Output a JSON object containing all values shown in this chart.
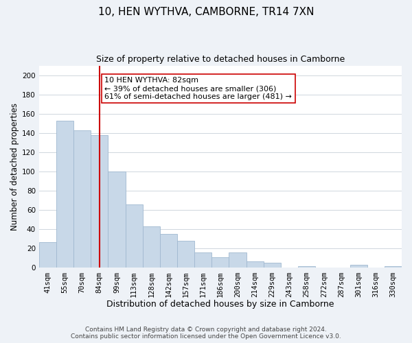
{
  "title": "10, HEN WYTHVA, CAMBORNE, TR14 7XN",
  "subtitle": "Size of property relative to detached houses in Camborne",
  "xlabel": "Distribution of detached houses by size in Camborne",
  "ylabel": "Number of detached properties",
  "bar_labels": [
    "41sqm",
    "55sqm",
    "70sqm",
    "84sqm",
    "99sqm",
    "113sqm",
    "128sqm",
    "142sqm",
    "157sqm",
    "171sqm",
    "186sqm",
    "200sqm",
    "214sqm",
    "229sqm",
    "243sqm",
    "258sqm",
    "272sqm",
    "287sqm",
    "301sqm",
    "316sqm",
    "330sqm"
  ],
  "bar_values": [
    27,
    153,
    143,
    138,
    100,
    66,
    43,
    35,
    28,
    16,
    11,
    16,
    7,
    5,
    0,
    2,
    0,
    0,
    3,
    0,
    2
  ],
  "bar_color": "#c8d8e8",
  "bar_edge_color": "#a0b8d0",
  "vline_x_index": 3,
  "vline_color": "#cc0000",
  "annotation_line1": "10 HEN WYTHVA: 82sqm",
  "annotation_line2": "← 39% of detached houses are smaller (306)",
  "annotation_line3": "61% of semi-detached houses are larger (481) →",
  "ylim": [
    0,
    210
  ],
  "yticks": [
    0,
    20,
    40,
    60,
    80,
    100,
    120,
    140,
    160,
    180,
    200
  ],
  "bg_color": "#eef2f7",
  "plot_bg_color": "#ffffff",
  "grid_color": "#c8d0d8",
  "footer_line1": "Contains HM Land Registry data © Crown copyright and database right 2024.",
  "footer_line2": "Contains public sector information licensed under the Open Government Licence v3.0.",
  "title_fontsize": 11,
  "subtitle_fontsize": 9,
  "xlabel_fontsize": 9,
  "ylabel_fontsize": 8.5,
  "tick_fontsize": 7.5,
  "annotation_fontsize": 8,
  "footer_fontsize": 6.5
}
